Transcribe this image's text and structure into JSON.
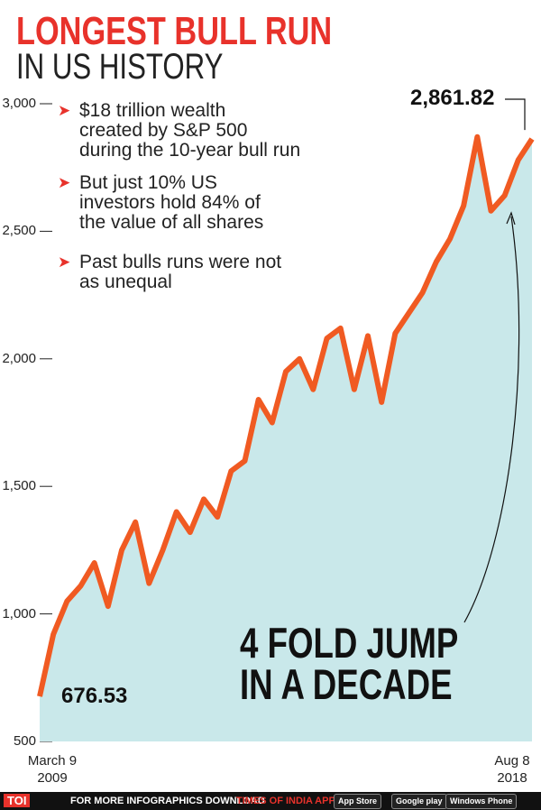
{
  "chart_data": {
    "type": "area-line",
    "title": "LONGEST BULL RUN",
    "subtitle": "IN US HISTORY",
    "notes": [
      "$18 trillion wealth\ncreated by S&P 500\nduring the 10-year bull run",
      "But just 10% US\ninvestors hold 84% of\nthe value of all shares",
      "Past bulls runs were not\nas unequal"
    ],
    "annotation": "4 FOLD JUMP\nIN A DECADE",
    "categories": [
      "March 9\n2009",
      null,
      null,
      null,
      null,
      null,
      null,
      null,
      null,
      null,
      null,
      null,
      null,
      null,
      null,
      null,
      null,
      null,
      null,
      null,
      null,
      null,
      null,
      null,
      null,
      null,
      null,
      null,
      null,
      null,
      null,
      null,
      null,
      null,
      null,
      null,
      "Aug 8\n2018"
    ],
    "values": [
      676.53,
      920,
      1050,
      1110,
      1200,
      1030,
      1250,
      1360,
      1120,
      1250,
      1400,
      1320,
      1450,
      1380,
      1560,
      1600,
      1840,
      1750,
      1950,
      2000,
      1880,
      2080,
      2120,
      1880,
      2090,
      1830,
      2100,
      2180,
      2260,
      2380,
      2470,
      2600,
      2870,
      2580,
      2640,
      2780,
      2861.82
    ],
    "value_labels": [
      "676.53",
      null,
      null,
      null,
      null,
      null,
      null,
      null,
      null,
      null,
      null,
      null,
      null,
      null,
      null,
      null,
      null,
      null,
      null,
      null,
      null,
      null,
      null,
      null,
      null,
      null,
      null,
      null,
      null,
      null,
      null,
      null,
      null,
      null,
      null,
      null,
      "2,861.82"
    ],
    "color": "#f05a22",
    "fill": "#c9e8ea",
    "ylim": [
      500,
      3000
    ],
    "yticks": [
      500,
      {
        "value": 1000,
        "label": "1,000"
      },
      {
        "value": 1500,
        "label": "1,500"
      },
      {
        "value": 2000,
        "label": "2,000"
      },
      {
        "value": 2500,
        "label": "2,500"
      },
      {
        "value": 3000,
        "label": "3,000"
      }
    ]
  },
  "footer": {
    "brand": "TOI",
    "text": "FOR MORE INFOGRAPHICS DOWNLOAD",
    "app": "TIMES OF INDIA APP",
    "badges": [
      "App Store",
      "Google play",
      "Windows Phone"
    ]
  }
}
